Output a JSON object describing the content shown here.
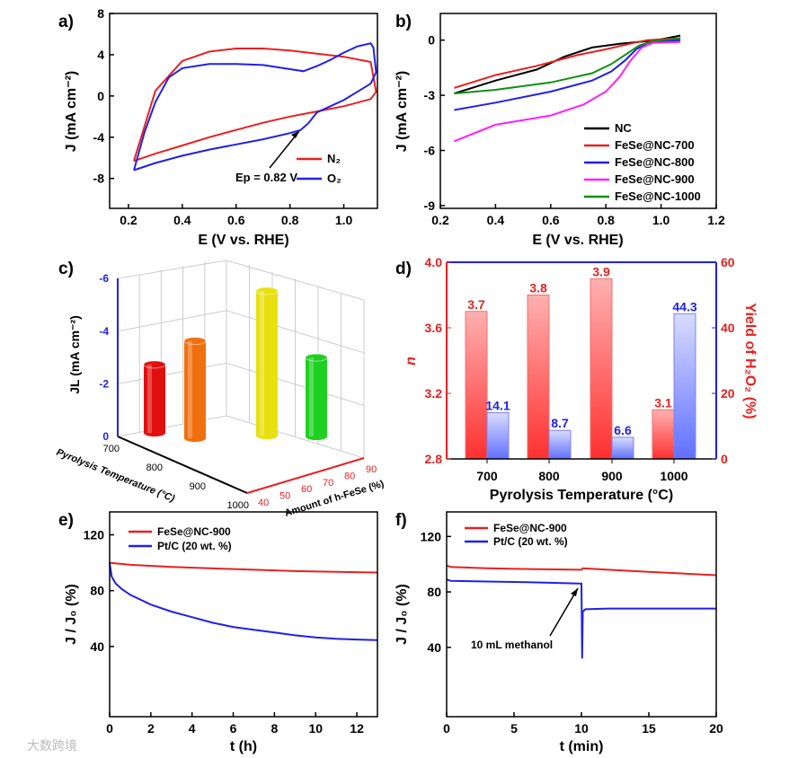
{
  "chart_data": [
    {
      "panel": "a)",
      "type": "line",
      "xlabel": "E (V vs. RHE)",
      "ylabel": "J (mA cm⁻²)",
      "xlim": [
        0.13,
        1.125
      ],
      "ylim": [
        -10.9,
        8
      ],
      "xticks": [
        0.2,
        0.4,
        0.6,
        0.8,
        1.0
      ],
      "xticklabels": [
        "0.2",
        "0.4",
        "0.6",
        "0.8",
        "1.0"
      ],
      "yticks": [
        8,
        4,
        0,
        -4,
        -8
      ],
      "yticklabels": [
        "8",
        "4",
        "0",
        "-4",
        "-8"
      ],
      "annotation": "Ep = 0.82 V",
      "legend_position": "bottom-right",
      "series": [
        {
          "name": "N₂",
          "color": "#e82020",
          "x": [
            0.22,
            0.3,
            0.4,
            0.5,
            0.6,
            0.7,
            0.8,
            0.9,
            1.0,
            1.1,
            1.12,
            1.1,
            1.0,
            0.9,
            0.8,
            0.7,
            0.6,
            0.5,
            0.4,
            0.3,
            0.22
          ],
          "y": [
            -6.3,
            0.5,
            3.4,
            4.3,
            4.6,
            4.6,
            4.4,
            4.1,
            3.8,
            3.3,
            0.4,
            -0.3,
            -1.0,
            -1.5,
            -2.0,
            -2.6,
            -3.3,
            -4.0,
            -4.8,
            -5.6,
            -6.3
          ]
        },
        {
          "name": "O₂",
          "color": "#2020e8",
          "x": [
            0.22,
            0.26,
            0.3,
            0.35,
            0.4,
            0.5,
            0.6,
            0.7,
            0.8,
            0.85,
            0.9,
            0.95,
            1.0,
            1.05,
            1.1,
            1.11,
            1.12,
            1.1,
            1.05,
            1.0,
            0.95,
            0.9,
            0.87,
            0.84,
            0.8,
            0.7,
            0.6,
            0.5,
            0.4,
            0.3,
            0.22
          ],
          "y": [
            -7.2,
            -3.5,
            -0.6,
            1.8,
            2.7,
            3.1,
            3.1,
            3.0,
            2.6,
            2.4,
            2.9,
            3.5,
            4.2,
            4.8,
            5.1,
            4.7,
            2.3,
            1.2,
            0.4,
            -0.4,
            -1.0,
            -1.6,
            -2.6,
            -3.3,
            -3.6,
            -4.2,
            -4.7,
            -5.2,
            -5.8,
            -6.5,
            -7.2
          ]
        }
      ]
    },
    {
      "panel": "b)",
      "type": "line",
      "xlabel": "E (V vs. RHE)",
      "ylabel": "J (mA cm⁻²)",
      "xlim": [
        0.2,
        1.2
      ],
      "ylim": [
        -9.15,
        1.45
      ],
      "xticks": [
        0.2,
        0.4,
        0.6,
        0.8,
        1.0,
        1.2
      ],
      "xticklabels": [
        "0.2",
        "0.4",
        "0.6",
        "0.8",
        "1.0",
        "1.2"
      ],
      "yticks": [
        0,
        -3,
        -6,
        -9
      ],
      "yticklabels": [
        "0",
        "-3",
        "-6",
        "-9"
      ],
      "legend_position": "bottom-right",
      "series": [
        {
          "name": "NC",
          "color": "#000000",
          "x": [
            0.25,
            0.4,
            0.55,
            0.65,
            0.75,
            0.85,
            0.95,
            1.0,
            1.07
          ],
          "y": [
            -2.9,
            -2.2,
            -1.6,
            -0.9,
            -0.4,
            -0.2,
            -0.05,
            0.05,
            0.25
          ]
        },
        {
          "name": "FeSe@NC-700",
          "color": "#e82020",
          "x": [
            0.25,
            0.4,
            0.55,
            0.7,
            0.8,
            0.9,
            0.95,
            1.0,
            1.07
          ],
          "y": [
            -2.6,
            -1.9,
            -1.4,
            -0.8,
            -0.5,
            -0.15,
            0,
            0.05,
            0.1
          ]
        },
        {
          "name": "FeSe@NC-800",
          "color": "#2020e8",
          "x": [
            0.25,
            0.4,
            0.6,
            0.75,
            0.82,
            0.87,
            0.91,
            0.95,
            1.0,
            1.07
          ],
          "y": [
            -3.8,
            -3.4,
            -2.8,
            -2.2,
            -1.7,
            -1.1,
            -0.5,
            -0.15,
            -0.05,
            0
          ]
        },
        {
          "name": "FeSe@NC-900",
          "color": "#ff20ff",
          "x": [
            0.25,
            0.4,
            0.6,
            0.72,
            0.8,
            0.85,
            0.89,
            0.93,
            0.97,
            1.07
          ],
          "y": [
            -5.5,
            -4.6,
            -4.1,
            -3.5,
            -2.8,
            -2.0,
            -1.1,
            -0.4,
            -0.15,
            -0.1
          ]
        },
        {
          "name": "FeSe@NC-1000",
          "color": "#109010",
          "x": [
            0.25,
            0.4,
            0.6,
            0.75,
            0.82,
            0.87,
            0.92,
            0.97,
            1.07
          ],
          "y": [
            -2.9,
            -2.7,
            -2.3,
            -1.8,
            -1.3,
            -0.8,
            -0.3,
            -0.05,
            0.1
          ]
        }
      ]
    },
    {
      "panel": "c)",
      "type": "bar3d",
      "ylabel": "JL (mA cm⁻²)",
      "xlabel": "Pyrolysis Temperature (°C)",
      "zlabel": "Amount of h-FeSe (%)",
      "yticklabels": [
        "-6",
        "-4",
        "-2",
        "0"
      ],
      "xticklabels": [
        "700",
        "800",
        "900",
        "1000"
      ],
      "zticklabels": [
        "40",
        "50",
        "60",
        "70",
        "80",
        "90"
      ],
      "categories": [
        "700",
        "800",
        "900",
        "1000"
      ],
      "values": [
        -2.6,
        -3.7,
        -5.5,
        -3.0
      ],
      "colors": [
        "#e01010",
        "#f07010",
        "#e8e010",
        "#20d020"
      ]
    },
    {
      "panel": "d)",
      "type": "bar",
      "xlabel": "Pyrolysis Temperature (°C)",
      "ylabel": "n",
      "y2label": "Yield of H₂O₂ (%)",
      "ylim": [
        2.8,
        4.0
      ],
      "y2lim": [
        0,
        60
      ],
      "yticklabels": [
        "2.8",
        "3.2",
        "3.6",
        "4.0"
      ],
      "y2ticklabels": [
        "0",
        "20",
        "40",
        "60"
      ],
      "categories": [
        "700",
        "800",
        "900",
        "1000"
      ],
      "series": [
        {
          "name": "n",
          "axis": "left",
          "color": "#f03030",
          "values": [
            3.7,
            3.8,
            3.9,
            3.1
          ],
          "labels": [
            "3.7",
            "3.8",
            "3.9",
            "3.1"
          ]
        },
        {
          "name": "Yield of H₂O₂",
          "axis": "right",
          "color": "#3030f0",
          "values": [
            14.1,
            8.7,
            6.6,
            44.3
          ],
          "labels": [
            "14.1",
            "8.7",
            "6.6",
            "44.3"
          ]
        }
      ]
    },
    {
      "panel": "e)",
      "type": "line",
      "xlabel": "t (h)",
      "ylabel": "J / J₀ (%)",
      "xlim": [
        0,
        13
      ],
      "ylim": [
        -10.3,
        136.4
      ],
      "xticks": [
        0,
        2,
        4,
        6,
        8,
        10,
        12
      ],
      "xticklabels": [
        "0",
        "2",
        "4",
        "6",
        "8",
        "10",
        "12"
      ],
      "yticks": [
        40,
        80,
        120
      ],
      "yticklabels": [
        "40",
        "80",
        "120"
      ],
      "legend_position": "top-left",
      "series": [
        {
          "name": "FeSe@NC-900",
          "color": "#e82020",
          "x": [
            0,
            1,
            3,
            6,
            9,
            13
          ],
          "y": [
            100,
            98.5,
            97,
            95.5,
            94,
            93
          ]
        },
        {
          "name": "Pt/C (20 wt. %)",
          "color": "#2020e8",
          "x": [
            0,
            0.1,
            0.3,
            0.6,
            1,
            2,
            3,
            4,
            5,
            6,
            7,
            8,
            9,
            10,
            11,
            12,
            13
          ],
          "y": [
            100,
            90,
            85,
            81,
            77,
            70,
            65,
            61,
            57,
            54,
            52,
            50,
            48,
            46.5,
            45.5,
            45,
            44.5
          ]
        }
      ]
    },
    {
      "panel": "f)",
      "type": "line",
      "xlabel": "t (min)",
      "ylabel": "J / J₀ (%)",
      "xlim": [
        0,
        20
      ],
      "ylim": [
        -10,
        137.7
      ],
      "xticks": [
        0,
        5,
        10,
        15,
        20
      ],
      "xticklabels": [
        "0",
        "5",
        "10",
        "15",
        "20"
      ],
      "yticks": [
        40,
        80,
        120
      ],
      "yticklabels": [
        "40",
        "80",
        "120"
      ],
      "legend_position": "top-left",
      "annotation": "10 mL methanol",
      "series": [
        {
          "name": "FeSe@NC-900",
          "color": "#e82020",
          "x": [
            0,
            0.3,
            3,
            6,
            10,
            10.1,
            12,
            15,
            18,
            20
          ],
          "y": [
            99,
            98,
            97,
            96.5,
            96,
            97,
            96,
            94.5,
            93,
            92
          ]
        },
        {
          "name": "Pt/C (20 wt. %)",
          "color": "#2020e8",
          "x": [
            0,
            0.3,
            3,
            6,
            9.9,
            10,
            10.05,
            10.1,
            10.3,
            12,
            15,
            20
          ],
          "y": [
            89,
            88,
            87.5,
            87,
            86,
            86,
            32,
            66,
            67.5,
            68,
            68,
            68
          ]
        }
      ]
    }
  ],
  "watermark": "大数跨境"
}
